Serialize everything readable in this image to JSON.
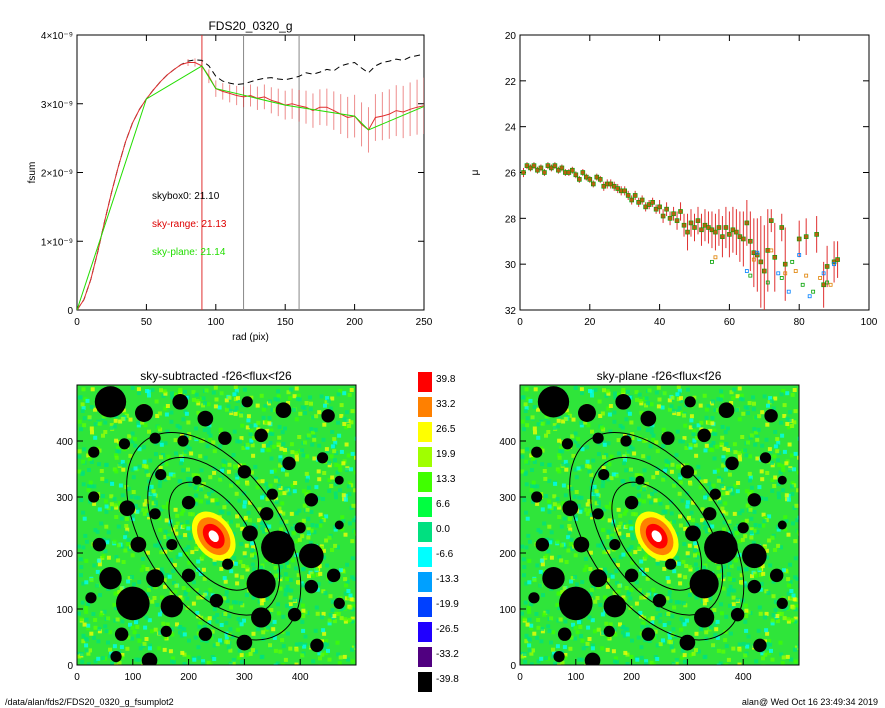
{
  "figure": {
    "footer_left": "/data/alan/fds2/FDS20_0320_g_fsumplot2",
    "footer_right": "alan@  Wed Oct 16 23:49:34 2019"
  },
  "chart_data": [
    {
      "type": "line",
      "title": "FDS20_0320_g",
      "xlabel": "rad (pix)",
      "ylabel": "fsum",
      "xlim": [
        0,
        250
      ],
      "ylim": [
        0,
        4e-09
      ],
      "x_ticks": [
        "0",
        "50",
        "100",
        "150",
        "200",
        "250"
      ],
      "y_ticks": [
        "0",
        "1×10⁻⁹",
        "2×10⁻⁹",
        "3×10⁻⁹",
        "4×10⁻⁹"
      ],
      "x_tick_values": [
        0,
        50,
        100,
        150,
        200,
        250
      ],
      "y_tick_values": [
        0,
        1e-09,
        2e-09,
        3e-09,
        4e-09
      ],
      "vlines": [
        {
          "x": 90,
          "color": "#e03030"
        },
        {
          "x": 120,
          "color": "#888888"
        },
        {
          "x": 160,
          "color": "#888888"
        }
      ],
      "annotations": [
        {
          "text": "skybox0: 21.10",
          "color": "#000000"
        },
        {
          "text": "sky-range: 21.13",
          "color": "#dd0000"
        },
        {
          "text": "sky-plane: 21.14",
          "color": "#22dd00"
        }
      ],
      "series": [
        {
          "style": "dashed",
          "color": "#000000",
          "x": [
            0,
            5,
            10,
            15,
            20,
            25,
            30,
            35,
            40,
            45,
            50,
            55,
            60,
            65,
            70,
            75,
            80,
            85,
            90,
            95,
            100,
            105,
            110,
            115,
            120,
            125,
            130,
            135,
            140,
            145,
            150,
            155,
            160,
            165,
            170,
            175,
            180,
            185,
            190,
            195,
            200,
            205,
            210,
            215,
            220,
            225,
            230,
            235,
            240,
            245,
            250
          ],
          "y": [
            0,
            1.5e-10,
            4.5e-10,
            8.5e-10,
            1.3e-09,
            1.72e-09,
            2.1e-09,
            2.45e-09,
            2.72e-09,
            2.92e-09,
            3.07e-09,
            3.2e-09,
            3.32e-09,
            3.42e-09,
            3.5e-09,
            3.57e-09,
            3.62e-09,
            3.64e-09,
            3.63e-09,
            3.55e-09,
            3.4e-09,
            3.33e-09,
            3.3e-09,
            3.28e-09,
            3.29e-09,
            3.32e-09,
            3.35e-09,
            3.37e-09,
            3.38e-09,
            3.36e-09,
            3.35e-09,
            3.37e-09,
            3.4e-09,
            3.45e-09,
            3.43e-09,
            3.46e-09,
            3.5e-09,
            3.48e-09,
            3.55e-09,
            3.58e-09,
            3.6e-09,
            3.52e-09,
            3.45e-09,
            3.55e-09,
            3.6e-09,
            3.62e-09,
            3.65e-09,
            3.63e-09,
            3.68e-09,
            3.7e-09,
            3.72e-09
          ]
        },
        {
          "style": "solid-errorbars",
          "color": "#e03030",
          "x": [
            0,
            5,
            10,
            15,
            20,
            25,
            30,
            35,
            40,
            45,
            50,
            55,
            60,
            65,
            70,
            75,
            80,
            85,
            90,
            95,
            100,
            105,
            110,
            115,
            120,
            125,
            130,
            135,
            140,
            145,
            150,
            155,
            160,
            165,
            170,
            175,
            180,
            185,
            190,
            195,
            200,
            205,
            210,
            215,
            220,
            225,
            230,
            235,
            240,
            245,
            250
          ],
          "y": [
            0,
            1.5e-10,
            4.5e-10,
            8.5e-10,
            1.3e-09,
            1.72e-09,
            2.1e-09,
            2.45e-09,
            2.72e-09,
            2.92e-09,
            3.07e-09,
            3.2e-09,
            3.32e-09,
            3.42e-09,
            3.5e-09,
            3.57e-09,
            3.6e-09,
            3.6e-09,
            3.55e-09,
            3.4e-09,
            3.22e-09,
            3.18e-09,
            3.15e-09,
            3.12e-09,
            3.1e-09,
            3.12e-09,
            3.08e-09,
            3.1e-09,
            3.05e-09,
            3.02e-09,
            2.98e-09,
            3e-09,
            2.97e-09,
            2.95e-09,
            2.9e-09,
            2.95e-09,
            2.95e-09,
            2.9e-09,
            2.85e-09,
            2.8e-09,
            2.82e-09,
            2.7e-09,
            2.62e-09,
            2.8e-09,
            2.82e-09,
            2.85e-09,
            2.9e-09,
            2.88e-09,
            2.92e-09,
            2.95e-09,
            2.97e-09
          ],
          "err": [
            0,
            0,
            0,
            0,
            0,
            0,
            0,
            0,
            0,
            0,
            0,
            0,
            0,
            0,
            0,
            0,
            5e-11,
            6e-11,
            8e-11,
            1e-10,
            1.2e-10,
            1.2e-10,
            1.3e-10,
            1.4e-10,
            1.5e-10,
            1.6e-10,
            1.7e-10,
            1.8e-10,
            1.9e-10,
            2e-10,
            2.1e-10,
            2.2e-10,
            2.3e-10,
            2.4e-10,
            2.5e-10,
            2.6e-10,
            2.7e-10,
            2.8e-10,
            2.9e-10,
            3e-10,
            3.1e-10,
            3.2e-10,
            3.3e-10,
            3.4e-10,
            3.5e-10,
            3.6e-10,
            3.7e-10,
            3.8e-10,
            3.9e-10,
            4e-10,
            4.1e-10
          ]
        },
        {
          "style": "solid",
          "color": "#22dd00",
          "x": [
            0,
            50,
            90,
            100,
            150,
            200,
            210,
            250
          ],
          "y": [
            0,
            3.07e-09,
            3.55e-09,
            3.22e-09,
            2.98e-09,
            2.82e-09,
            2.62e-09,
            2.96e-09
          ]
        }
      ]
    },
    {
      "type": "scatter",
      "title": "",
      "xlabel": "",
      "ylabel": "μ",
      "xlim": [
        0,
        100
      ],
      "ylim": [
        32,
        20
      ],
      "x_ticks": [
        "0",
        "20",
        "40",
        "60",
        "80",
        "100"
      ],
      "y_ticks": [
        "20",
        "22",
        "24",
        "26",
        "28",
        "30",
        "32"
      ],
      "x_tick_values": [
        0,
        20,
        40,
        60,
        80,
        100
      ],
      "y_tick_values": [
        20,
        22,
        24,
        26,
        28,
        30,
        32
      ],
      "points": [
        [
          1,
          26.0,
          0.2
        ],
        [
          2,
          25.7,
          0.15
        ],
        [
          3,
          25.8,
          0.15
        ],
        [
          4,
          25.7,
          0.15
        ],
        [
          5,
          25.9,
          0.15
        ],
        [
          6,
          25.8,
          0.15
        ],
        [
          7,
          26.0,
          0.15
        ],
        [
          8,
          25.7,
          0.15
        ],
        [
          9,
          25.8,
          0.15
        ],
        [
          10,
          25.7,
          0.15
        ],
        [
          11,
          25.9,
          0.15
        ],
        [
          12,
          25.8,
          0.15
        ],
        [
          13,
          26.0,
          0.15
        ],
        [
          14,
          26.0,
          0.15
        ],
        [
          15,
          25.9,
          0.15
        ],
        [
          16,
          26.1,
          0.15
        ],
        [
          17,
          26.3,
          0.15
        ],
        [
          18,
          26.0,
          0.15
        ],
        [
          19,
          26.2,
          0.15
        ],
        [
          20,
          26.3,
          0.15
        ],
        [
          21,
          26.5,
          0.15
        ],
        [
          22,
          26.2,
          0.15
        ],
        [
          23,
          26.3,
          0.15
        ],
        [
          24,
          26.6,
          0.2
        ],
        [
          25,
          26.5,
          0.2
        ],
        [
          26,
          26.5,
          0.2
        ],
        [
          27,
          26.6,
          0.2
        ],
        [
          28,
          26.7,
          0.2
        ],
        [
          29,
          26.8,
          0.2
        ],
        [
          30,
          26.8,
          0.2
        ],
        [
          31,
          27.0,
          0.2
        ],
        [
          32,
          27.2,
          0.2
        ],
        [
          33,
          27.0,
          0.2
        ],
        [
          34,
          27.3,
          0.2
        ],
        [
          35,
          27.2,
          0.2
        ],
        [
          36,
          27.5,
          0.2
        ],
        [
          37,
          27.4,
          0.2
        ],
        [
          38,
          27.3,
          0.2
        ],
        [
          39,
          27.6,
          0.2
        ],
        [
          40,
          27.5,
          0.3
        ],
        [
          41,
          27.9,
          0.3
        ],
        [
          42,
          27.6,
          0.3
        ],
        [
          43,
          28.0,
          0.3
        ],
        [
          44,
          27.8,
          0.3
        ],
        [
          45,
          28.1,
          0.4
        ],
        [
          46,
          27.7,
          0.4
        ],
        [
          47,
          28.3,
          0.5
        ],
        [
          48,
          28.6,
          0.8
        ],
        [
          49,
          28.2,
          0.6
        ],
        [
          50,
          28.4,
          0.6
        ],
        [
          51,
          28.1,
          0.6
        ],
        [
          52,
          28.5,
          0.7
        ],
        [
          53,
          28.3,
          0.7
        ],
        [
          54,
          28.4,
          0.7
        ],
        [
          55,
          28.5,
          0.8
        ],
        [
          56,
          28.6,
          0.8
        ],
        [
          57,
          28.4,
          0.8
        ],
        [
          58,
          28.8,
          0.9
        ],
        [
          59,
          28.4,
          0.9
        ],
        [
          60,
          28.7,
          1.0
        ],
        [
          61,
          28.5,
          1.0
        ],
        [
          62,
          28.6,
          1.0
        ],
        [
          63,
          28.8,
          1.1
        ],
        [
          64,
          28.9,
          1.2
        ],
        [
          65,
          28.2,
          1.0
        ],
        [
          66,
          29.0,
          1.3
        ],
        [
          67,
          29.5,
          1.5
        ],
        [
          68,
          29.6,
          1.6
        ],
        [
          69,
          29.9,
          2.0
        ],
        [
          70,
          30.3,
          2.0
        ],
        [
          71,
          29.4,
          1.8
        ],
        [
          72,
          28.1,
          0.5
        ],
        [
          73,
          29.7,
          1.5
        ],
        [
          75,
          28.4,
          0.6
        ],
        [
          76,
          30.0,
          1.6
        ],
        [
          80,
          28.9,
          0.8
        ],
        [
          82,
          28.8,
          0.8
        ],
        [
          85,
          28.7,
          0.8
        ],
        [
          87,
          30.9,
          1.0
        ],
        [
          88,
          30.1,
          0.9
        ],
        [
          90,
          29.9,
          0.9
        ],
        [
          91,
          29.8,
          0.8
        ]
      ],
      "scatter_points": [
        [
          55,
          29.9
        ],
        [
          56,
          29.7
        ],
        [
          65,
          30.3
        ],
        [
          66,
          30.5
        ],
        [
          67,
          29.8
        ],
        [
          68,
          29.5
        ],
        [
          71,
          30.8
        ],
        [
          72,
          29.4
        ],
        [
          74,
          30.4
        ],
        [
          75,
          30.6
        ],
        [
          76,
          30.4
        ],
        [
          77,
          31.2
        ],
        [
          78,
          29.9
        ],
        [
          79,
          30.3
        ],
        [
          80,
          29.6
        ],
        [
          81,
          30.9
        ],
        [
          82,
          30.5
        ],
        [
          83,
          31.4
        ],
        [
          84,
          31.2
        ],
        [
          86,
          30.6
        ],
        [
          87,
          30.4
        ],
        [
          88,
          30.8
        ],
        [
          89,
          30.9
        ],
        [
          90,
          30.0
        ]
      ]
    },
    {
      "type": "heatmap",
      "title": "sky-subtracted -f26<flux<f26",
      "xlabel": "",
      "ylabel": "",
      "xlim": [
        0,
        500
      ],
      "ylim": [
        0,
        500
      ],
      "x_ticks": [
        "0",
        "100",
        "200",
        "300",
        "400"
      ],
      "y_ticks": [
        "0",
        "100",
        "200",
        "300",
        "400"
      ],
      "x_tick_values": [
        0,
        100,
        200,
        300,
        400
      ],
      "y_tick_values": [
        0,
        100,
        200,
        300,
        400
      ]
    },
    {
      "type": "heatmap",
      "title": "sky-plane -f26<flux<f26",
      "xlabel": "",
      "ylabel": "",
      "xlim": [
        0,
        500
      ],
      "ylim": [
        0,
        500
      ],
      "x_ticks": [
        "0",
        "100",
        "200",
        "300",
        "400"
      ],
      "y_ticks": [
        "0",
        "100",
        "200",
        "300",
        "400"
      ],
      "x_tick_values": [
        0,
        100,
        200,
        300,
        400
      ],
      "y_tick_values": [
        0,
        100,
        200,
        300,
        400
      ]
    }
  ],
  "heatmap_sources": {
    "galaxy_center": [
      245,
      230
    ],
    "ellipses": [
      [
        245,
        230,
        60,
        110,
        -35
      ],
      [
        245,
        230,
        90,
        160,
        -35
      ],
      [
        245,
        230,
        120,
        210,
        -35
      ]
    ],
    "masks": [
      [
        60,
        470,
        28
      ],
      [
        120,
        450,
        16
      ],
      [
        185,
        470,
        14
      ],
      [
        230,
        440,
        14
      ],
      [
        305,
        470,
        10
      ],
      [
        370,
        455,
        14
      ],
      [
        450,
        445,
        12
      ],
      [
        330,
        410,
        12
      ],
      [
        265,
        405,
        12
      ],
      [
        190,
        400,
        10
      ],
      [
        140,
        405,
        10
      ],
      [
        85,
        395,
        10
      ],
      [
        30,
        380,
        10
      ],
      [
        380,
        360,
        12
      ],
      [
        440,
        370,
        10
      ],
      [
        150,
        340,
        10
      ],
      [
        215,
        330,
        8
      ],
      [
        300,
        345,
        12
      ],
      [
        350,
        305,
        10
      ],
      [
        420,
        295,
        12
      ],
      [
        470,
        330,
        8
      ],
      [
        30,
        300,
        10
      ],
      [
        90,
        280,
        14
      ],
      [
        140,
        270,
        10
      ],
      [
        200,
        290,
        12
      ],
      [
        340,
        270,
        12
      ],
      [
        400,
        245,
        10
      ],
      [
        470,
        250,
        8
      ],
      [
        40,
        215,
        12
      ],
      [
        110,
        215,
        14
      ],
      [
        170,
        215,
        10
      ],
      [
        360,
        210,
        30
      ],
      [
        420,
        195,
        22
      ],
      [
        310,
        235,
        14
      ],
      [
        270,
        180,
        10
      ],
      [
        200,
        160,
        12
      ],
      [
        140,
        155,
        16
      ],
      [
        60,
        155,
        20
      ],
      [
        330,
        145,
        26
      ],
      [
        420,
        140,
        12
      ],
      [
        460,
        160,
        12
      ],
      [
        25,
        120,
        10
      ],
      [
        100,
        110,
        30
      ],
      [
        170,
        105,
        20
      ],
      [
        250,
        115,
        12
      ],
      [
        330,
        85,
        18
      ],
      [
        390,
        90,
        12
      ],
      [
        470,
        110,
        10
      ],
      [
        80,
        55,
        12
      ],
      [
        160,
        60,
        10
      ],
      [
        230,
        55,
        12
      ],
      [
        300,
        40,
        14
      ],
      [
        430,
        35,
        12
      ],
      [
        70,
        15,
        10
      ],
      [
        130,
        8,
        14
      ]
    ]
  },
  "colorbar": {
    "values": [
      "39.8",
      "33.2",
      "26.5",
      "19.9",
      "13.3",
      "6.6",
      "0.0",
      "-6.6",
      "-13.3",
      "-19.9",
      "-26.5",
      "-33.2",
      "-39.8"
    ],
    "colors": [
      "#ff0000",
      "#ff8000",
      "#ffff00",
      "#a0ff00",
      "#40ff00",
      "#00ff40",
      "#00e080",
      "#00ffff",
      "#00a0ff",
      "#0040ff",
      "#2000ff",
      "#500080",
      "#000000"
    ]
  }
}
